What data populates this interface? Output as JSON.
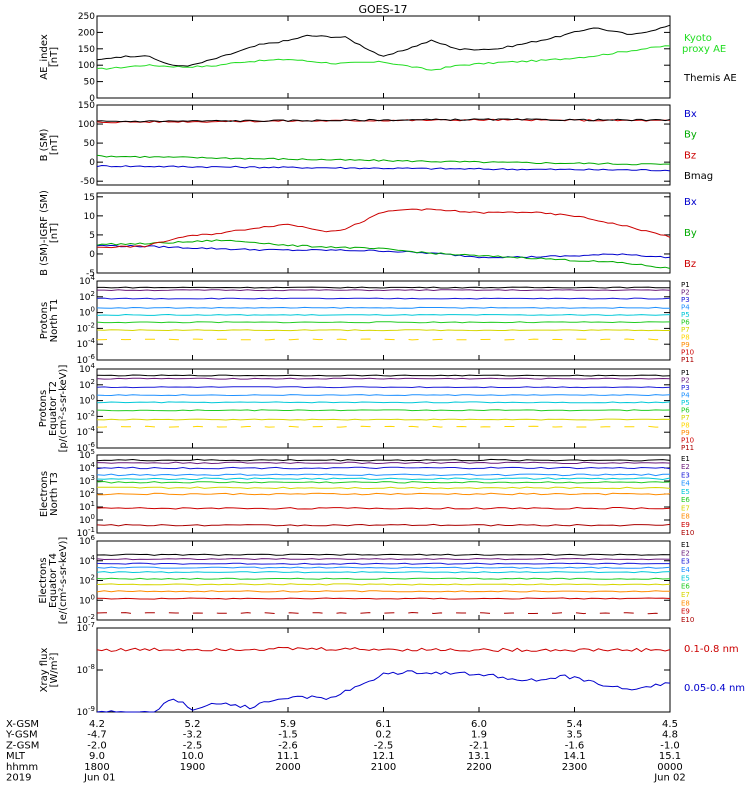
{
  "title": "GOES-17",
  "chart_data": [
    {
      "type": "line",
      "ylabel": [
        "AE_index",
        "[nT]"
      ],
      "ylim": [
        0,
        250
      ],
      "yticks": [
        "0",
        "50",
        "100",
        "150",
        "200",
        "250"
      ],
      "series": [
        {
          "name": "Kyoto proxy AE",
          "label_lines": [
            "Kyoto",
            "proxy AE"
          ],
          "color": "#22dd22",
          "x": [
            0,
            0.2,
            0.5,
            0.9,
            1.2,
            1.5,
            2.0,
            2.5,
            3.0,
            3.5,
            3.8,
            4.2,
            4.7,
            5.2,
            5.6,
            6.0
          ],
          "values": [
            88,
            92,
            100,
            95,
            97,
            110,
            118,
            105,
            110,
            85,
            100,
            108,
            115,
            128,
            145,
            160
          ]
        },
        {
          "name": "Themis AE",
          "label_lines": [
            "Themis AE"
          ],
          "color": "#000000",
          "x": [
            0,
            0.2,
            0.5,
            0.8,
            1.0,
            1.3,
            1.7,
            2.0,
            2.2,
            2.6,
            3.0,
            3.5,
            3.8,
            4.2,
            4.8,
            5.2,
            5.6,
            6.0
          ],
          "values": [
            115,
            125,
            130,
            98,
            100,
            125,
            162,
            175,
            190,
            185,
            125,
            175,
            148,
            150,
            185,
            215,
            192,
            220
          ]
        }
      ]
    },
    {
      "type": "line",
      "ylabel": [
        "B (SM)",
        "[nT]"
      ],
      "ylim": [
        -60,
        150
      ],
      "yticks": [
        "-50",
        "0",
        "50",
        "100",
        "150"
      ],
      "series": [
        {
          "name": "Bx",
          "color": "#0000cc",
          "x": [
            0,
            2,
            4,
            6
          ],
          "values": [
            -10,
            -14,
            -18,
            -21
          ]
        },
        {
          "name": "By",
          "color": "#00aa00",
          "x": [
            0,
            2,
            4,
            6
          ],
          "values": [
            16,
            8,
            0,
            -6
          ]
        },
        {
          "name": "Bz",
          "color": "#cc0000",
          "x": [
            0,
            2,
            4,
            6
          ],
          "values": [
            105,
            108,
            111,
            109
          ]
        },
        {
          "name": "Bmag",
          "color": "#000000",
          "x": [
            0,
            2,
            4,
            6
          ],
          "values": [
            107,
            109,
            112,
            110
          ]
        }
      ]
    },
    {
      "type": "line",
      "ylabel": [
        "B (SM)-IGRF (SM)",
        "[nT]"
      ],
      "ylim": [
        -5,
        16
      ],
      "yticks": [
        "-5",
        "0",
        "5",
        "10",
        "15"
      ],
      "series": [
        {
          "name": "Bx",
          "color": "#0000cc",
          "x": [
            0,
            0.5,
            1.0,
            1.5,
            2.0,
            2.5,
            3.0,
            3.5,
            4.0,
            4.5,
            5.0,
            5.5,
            6.0
          ],
          "values": [
            2.2,
            2.0,
            1.6,
            1.2,
            1.0,
            1.0,
            0.8,
            0.2,
            -0.8,
            -0.8,
            -0.5,
            0.0,
            -1.0
          ]
        },
        {
          "name": "By",
          "color": "#00aa00",
          "x": [
            0,
            0.5,
            1.0,
            1.3,
            1.7,
            2.0,
            2.5,
            3.0,
            3.5,
            4.0,
            4.5,
            5.0,
            5.5,
            6.0
          ],
          "values": [
            2.5,
            2.7,
            3.2,
            3.6,
            3.0,
            2.2,
            1.8,
            1.3,
            0.2,
            -0.5,
            -1.0,
            -1.7,
            -2.3,
            -3.8
          ]
        },
        {
          "name": "Bz",
          "color": "#cc0000",
          "x": [
            0,
            0.5,
            0.9,
            1.3,
            1.7,
            2.0,
            2.4,
            2.6,
            3.0,
            3.3,
            3.6,
            4.0,
            4.5,
            5.0,
            5.5,
            6.0
          ],
          "values": [
            1.8,
            2.0,
            4.5,
            5.5,
            7.0,
            7.8,
            6.0,
            6.5,
            11.0,
            11.8,
            11.5,
            10.8,
            11.0,
            10.0,
            7.5,
            4.5
          ]
        }
      ]
    },
    {
      "type": "line",
      "ylabel": [
        "Protons",
        "North T1"
      ],
      "yscale": "log",
      "ylim": [
        1e-06,
        10000
      ],
      "yticks": [
        "10^-6",
        "10^-4",
        "10^-2",
        "10^0",
        "10^2",
        "10^4"
      ],
      "channel_label_lines": [
        {
          "name": "P1",
          "color": "#000000"
        },
        {
          "name": "P2",
          "color": "#6a1b7a"
        },
        {
          "name": "P3",
          "color": "#1a1ad8"
        },
        {
          "name": "P4",
          "color": "#1e90ff"
        },
        {
          "name": "P5",
          "color": "#00c8d8"
        },
        {
          "name": "P6",
          "color": "#22cc22"
        },
        {
          "name": "P7",
          "color": "#d6d600"
        },
        {
          "name": "P8",
          "color": "#ffd700"
        },
        {
          "name": "P9",
          "color": "#ff8c00"
        },
        {
          "name": "P10",
          "color": "#cc0000"
        },
        {
          "name": "P11",
          "color": "#aa0000"
        }
      ],
      "series": [
        {
          "color": "#000000",
          "value": 1500
        },
        {
          "color": "#6a1b7a",
          "value": 700
        },
        {
          "color": "#1a1ad8",
          "value": 60
        },
        {
          "color": "#1e90ff",
          "value": 4
        },
        {
          "color": "#00c8d8",
          "value": 0.5
        },
        {
          "color": "#22cc22",
          "value": 0.06
        },
        {
          "color": "#d6d600",
          "value": 0.006
        },
        {
          "color": "#ffd700",
          "value": 0.0004,
          "dashed": true
        }
      ]
    },
    {
      "type": "line",
      "ylabel": [
        "Protons",
        "Equator T2",
        "[p/(cm²-s-sr-keV)]"
      ],
      "yscale": "log",
      "ylim": [
        1e-06,
        10000
      ],
      "yticks": [
        "10^-6",
        "10^-4",
        "10^-2",
        "10^0",
        "10^2",
        "10^4"
      ],
      "channel_label_lines": [
        {
          "name": "P1",
          "color": "#000000"
        },
        {
          "name": "P2",
          "color": "#6a1b7a"
        },
        {
          "name": "P3",
          "color": "#1a1ad8"
        },
        {
          "name": "P4",
          "color": "#1e90ff"
        },
        {
          "name": "P5",
          "color": "#00c8d8"
        },
        {
          "name": "P6",
          "color": "#22cc22"
        },
        {
          "name": "P7",
          "color": "#d6d600"
        },
        {
          "name": "P8",
          "color": "#ffd700"
        },
        {
          "name": "P9",
          "color": "#ff8c00"
        },
        {
          "name": "P10",
          "color": "#cc0000"
        },
        {
          "name": "P11",
          "color": "#aa0000"
        }
      ],
      "series": [
        {
          "color": "#000000",
          "value": 1500
        },
        {
          "color": "#6a1b7a",
          "value": 600
        },
        {
          "color": "#1a1ad8",
          "value": 50
        },
        {
          "color": "#1e90ff",
          "value": 5
        },
        {
          "color": "#00c8d8",
          "value": 0.6
        },
        {
          "color": "#22cc22",
          "value": 0.06
        },
        {
          "color": "#d6d600",
          "value": 0.004
        },
        {
          "color": "#ffd700",
          "value": 0.0005,
          "dashed": true
        }
      ]
    },
    {
      "type": "line",
      "ylabel": [
        "Electrons",
        "North T3"
      ],
      "yscale": "log",
      "ylim": [
        0.1,
        100000
      ],
      "yticks": [
        "10^-1",
        "10^0",
        "10^1",
        "10^2",
        "10^3",
        "10^4",
        "10^5"
      ],
      "channel_label_lines": [
        {
          "name": "E1",
          "color": "#000000"
        },
        {
          "name": "E2",
          "color": "#6a1b7a"
        },
        {
          "name": "E3",
          "color": "#1a1ad8"
        },
        {
          "name": "E4",
          "color": "#1e90ff"
        },
        {
          "name": "E5",
          "color": "#00c8d8"
        },
        {
          "name": "E6",
          "color": "#22cc22"
        },
        {
          "name": "E7",
          "color": "#d6d600"
        },
        {
          "name": "E8",
          "color": "#ff8c00"
        },
        {
          "name": "E9",
          "color": "#cc0000"
        },
        {
          "name": "E10",
          "color": "#aa0000"
        }
      ],
      "series": [
        {
          "color": "#000000",
          "value": 40000
        },
        {
          "color": "#6a1b7a",
          "value": 25000
        },
        {
          "color": "#1a1ad8",
          "value": 10000
        },
        {
          "color": "#1e90ff",
          "value": 3000
        },
        {
          "color": "#00c8d8",
          "value": 1500
        },
        {
          "color": "#22cc22",
          "value": 800
        },
        {
          "color": "#d6d600",
          "value": 300
        },
        {
          "color": "#ff8c00",
          "value": 100
        },
        {
          "color": "#cc0000",
          "value": 8
        },
        {
          "color": "#aa0000",
          "value": 0.4
        }
      ]
    },
    {
      "type": "line",
      "ylabel": [
        "Electrons",
        "Equator T4",
        "[e/(cm²-s-sr-keV)]"
      ],
      "yscale": "log",
      "ylim": [
        0.01,
        1000000
      ],
      "yticks": [
        "10^-2",
        "10^0",
        "10^2",
        "10^4",
        "10^6"
      ],
      "channel_label_lines": [
        {
          "name": "E1",
          "color": "#000000"
        },
        {
          "name": "E2",
          "color": "#6a1b7a"
        },
        {
          "name": "E3",
          "color": "#1a1ad8"
        },
        {
          "name": "E4",
          "color": "#1e90ff"
        },
        {
          "name": "E5",
          "color": "#00c8d8"
        },
        {
          "name": "E6",
          "color": "#22cc22"
        },
        {
          "name": "E7",
          "color": "#d6d600"
        },
        {
          "name": "E8",
          "color": "#ff8c00"
        },
        {
          "name": "E9",
          "color": "#cc0000"
        },
        {
          "name": "E10",
          "color": "#aa0000"
        }
      ],
      "series": [
        {
          "color": "#000000",
          "value": 40000
        },
        {
          "color": "#6a1b7a",
          "value": 15000
        },
        {
          "color": "#1a1ad8",
          "value": 5000
        },
        {
          "color": "#1e90ff",
          "value": 2000
        },
        {
          "color": "#00c8d8",
          "value": 700
        },
        {
          "color": "#22cc22",
          "value": 150
        },
        {
          "color": "#d6d600",
          "value": 40
        },
        {
          "color": "#ff8c00",
          "value": 8
        },
        {
          "color": "#cc0000",
          "value": 1.5
        },
        {
          "color": "#aa0000",
          "value": 0.05,
          "dashed": true
        }
      ]
    },
    {
      "type": "line",
      "ylabel": [
        "Xray flux",
        "[W/m²]"
      ],
      "yscale": "log",
      "ylim": [
        1e-09,
        1e-07
      ],
      "yticks": [
        "10^-9",
        "10^-8",
        "10^-7"
      ],
      "series": [
        {
          "name": "0.1-0.8 nm",
          "color": "#cc0000",
          "x": [
            0,
            1,
            2,
            3,
            4,
            5,
            6
          ],
          "values": [
            3e-08,
            3.1e-08,
            3.2e-08,
            3.1e-08,
            3e-08,
            3e-08,
            3e-08
          ]
        },
        {
          "name": "0.05-0.4 nm",
          "color": "#0000cc",
          "x": [
            0,
            0.6,
            0.8,
            1.0,
            1.3,
            1.6,
            1.9,
            2.1,
            2.4,
            2.6,
            2.8,
            3.0,
            3.3,
            3.6,
            4.0,
            4.3,
            4.6,
            4.9,
            5.2,
            5.5,
            5.8,
            6.0
          ],
          "values": [
            1e-09,
            1e-09,
            2e-09,
            1.2e-09,
            1.6e-09,
            1.3e-09,
            2e-09,
            2.4e-09,
            2e-09,
            3e-09,
            4.5e-09,
            8e-09,
            9e-09,
            8.5e-09,
            8e-09,
            6.5e-09,
            5.5e-09,
            7e-09,
            5e-09,
            3.5e-09,
            4e-09,
            5e-09
          ]
        }
      ]
    }
  ],
  "x_axis": {
    "range_hours": [
      0,
      6
    ],
    "rows": [
      {
        "name": "X-GSM",
        "values": [
          "4.2",
          "5.2",
          "5.9",
          "6.1",
          "6.0",
          "5.4",
          "4.5"
        ]
      },
      {
        "name": "Y-GSM",
        "values": [
          "-4.7",
          "-3.2",
          "-1.5",
          "0.2",
          "1.9",
          "3.5",
          "4.8"
        ]
      },
      {
        "name": "Z-GSM",
        "values": [
          "-2.0",
          "-2.5",
          "-2.6",
          "-2.5",
          "-2.1",
          "-1.6",
          "-1.0"
        ]
      },
      {
        "name": "MLT",
        "values": [
          "9.0",
          "10.0",
          "11.1",
          "12.1",
          "13.1",
          "14.1",
          "15.1"
        ]
      },
      {
        "name": "hhmm",
        "values": [
          "1800",
          "1900",
          "2000",
          "2100",
          "2200",
          "2300",
          "0000"
        ]
      },
      {
        "name": "2019",
        "values": [
          "Jun 01",
          "",
          "",
          "",
          "",
          "",
          "Jun 02"
        ]
      }
    ]
  }
}
